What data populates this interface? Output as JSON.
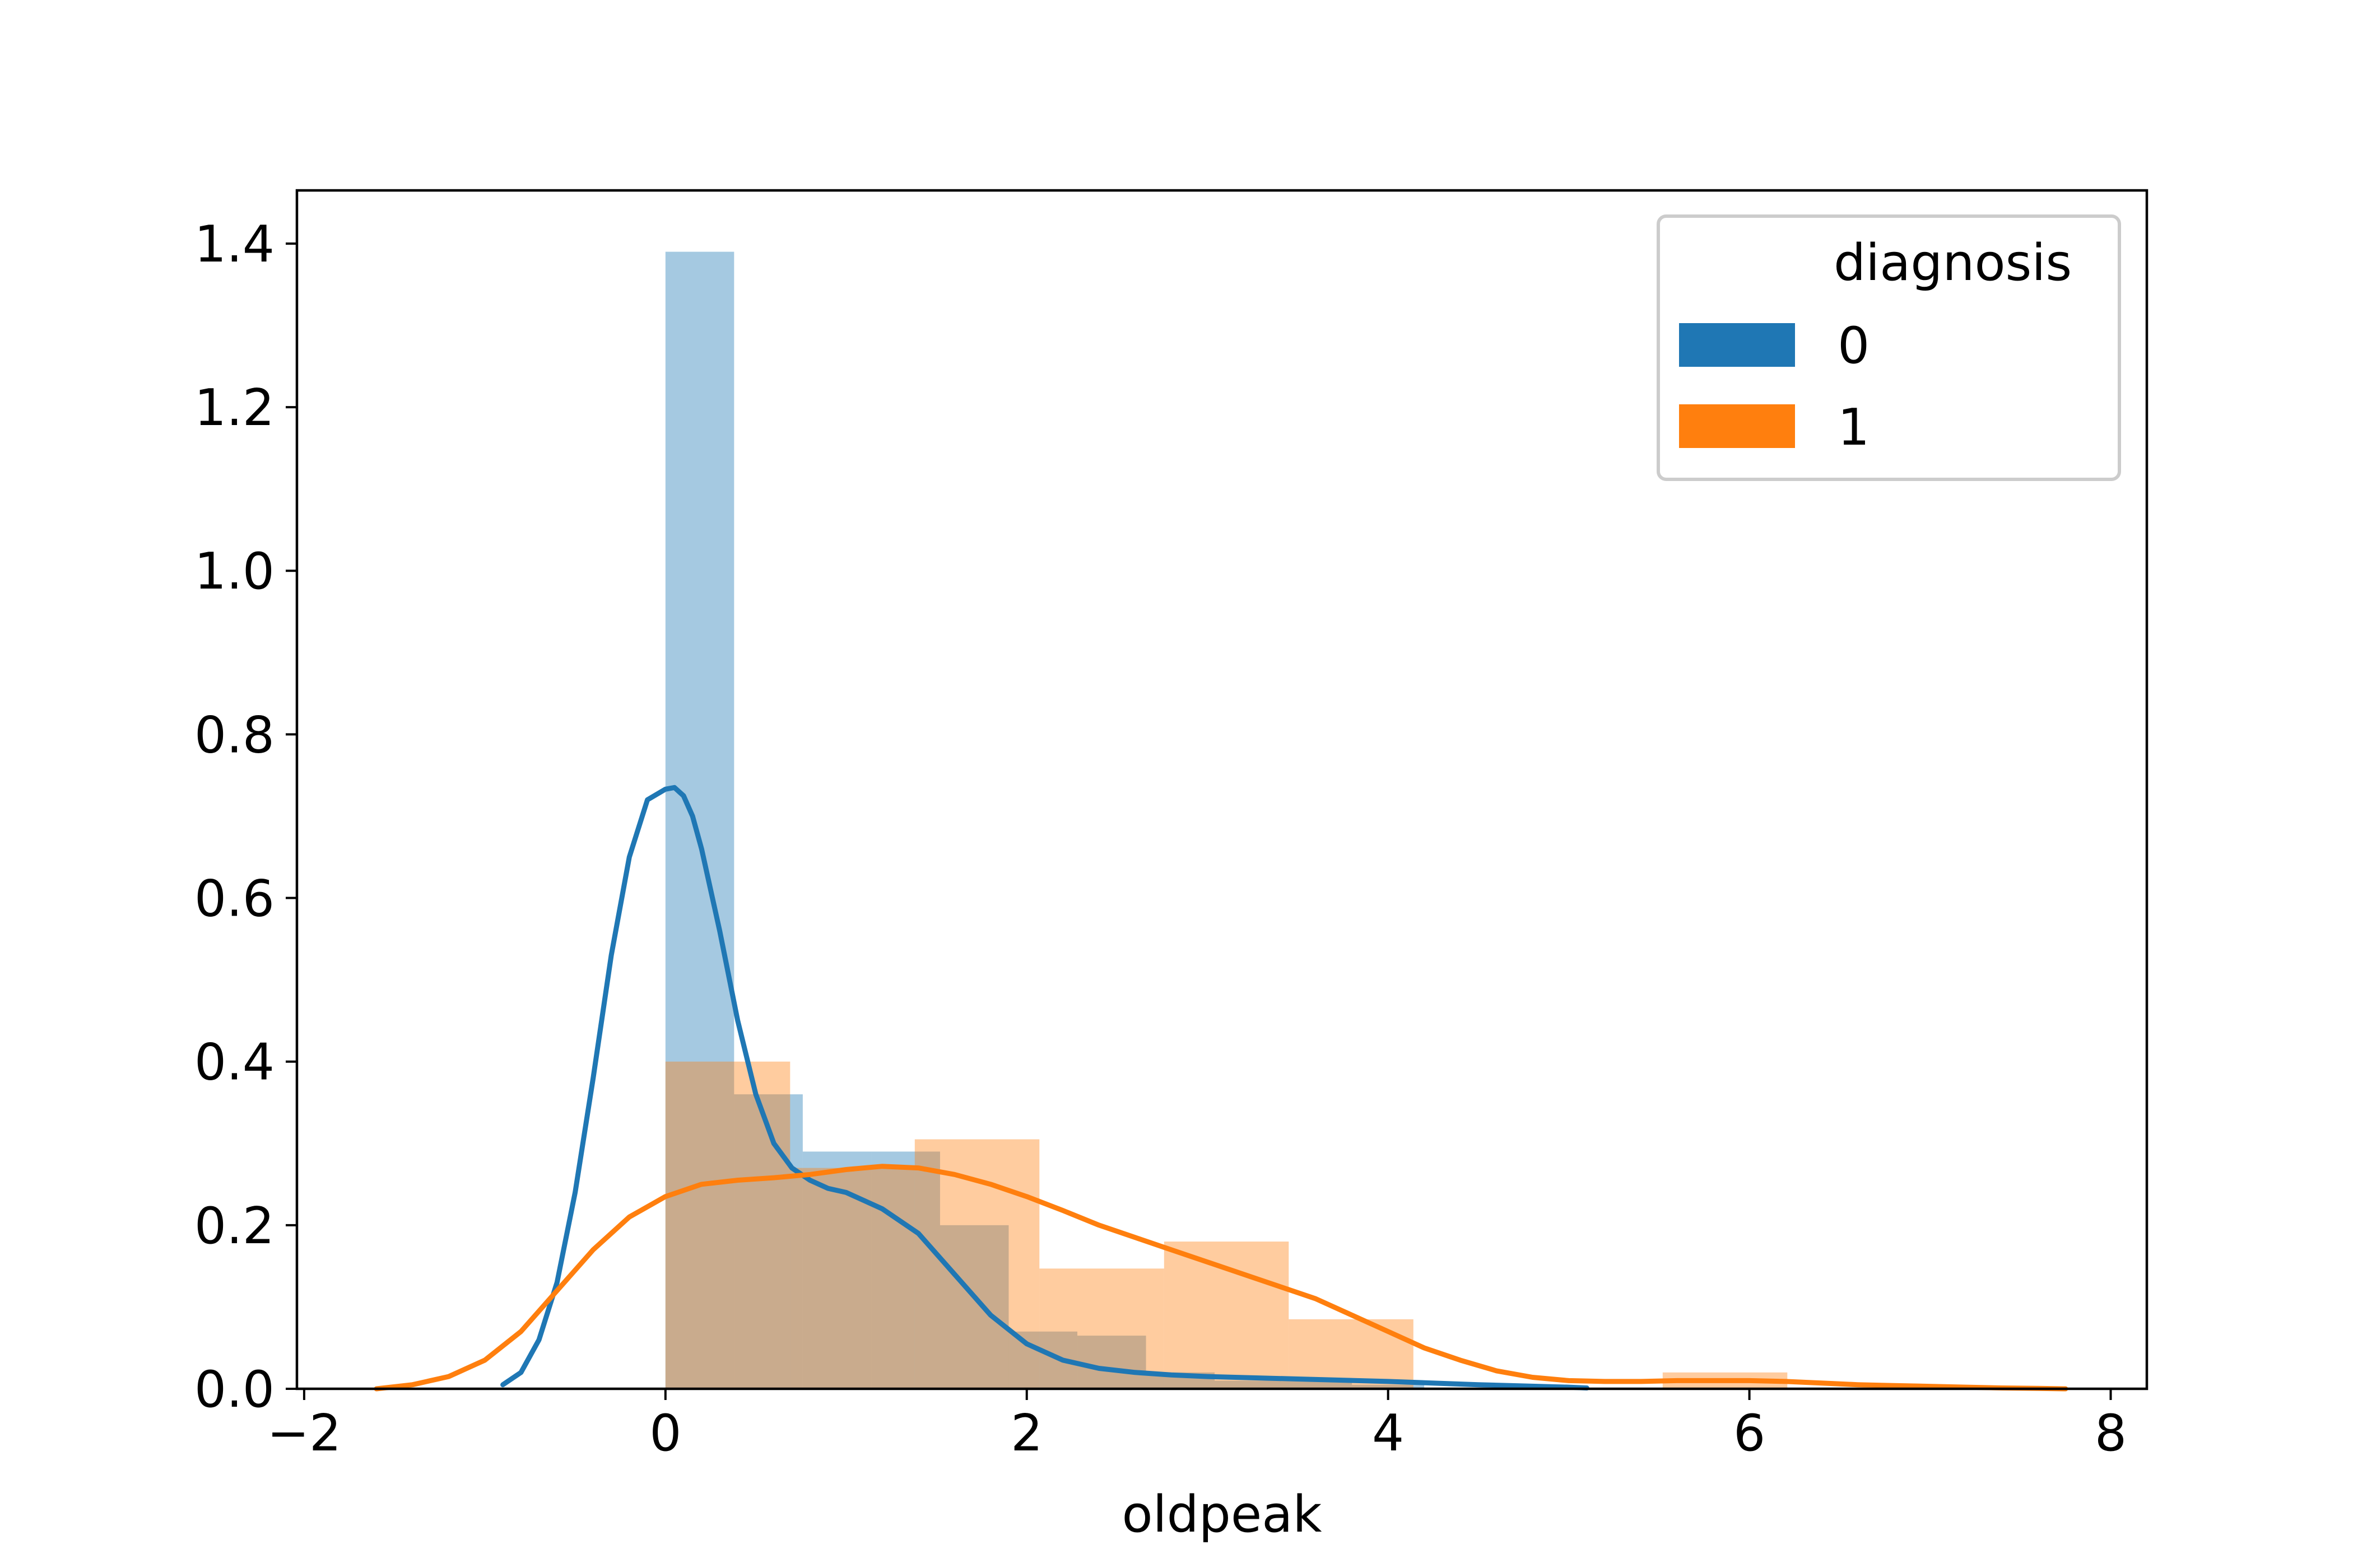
{
  "chart_data": {
    "type": "histogram-kde",
    "xlabel": "oldpeak",
    "ylabel": "",
    "xlim": [
      -2.04,
      8.2
    ],
    "ylim": [
      0,
      1.465
    ],
    "xticks": [
      -2,
      0,
      2,
      4,
      6,
      8
    ],
    "xtick_labels": [
      "−2",
      "0",
      "2",
      "4",
      "6",
      "8"
    ],
    "yticks": [
      0.0,
      0.2,
      0.4,
      0.6,
      0.8,
      1.0,
      1.2,
      1.4
    ],
    "ytick_labels": [
      "0.0",
      "0.2",
      "0.4",
      "0.6",
      "0.8",
      "1.0",
      "1.2",
      "1.4"
    ],
    "grid": false,
    "legend": {
      "title": "diagnosis",
      "placement": "top-right",
      "entries": [
        {
          "label": "0",
          "color": "#1f77b4"
        },
        {
          "label": "1",
          "color": "#ff7f0e"
        }
      ]
    },
    "series": [
      {
        "name": "0",
        "color": "#1f77b4",
        "bar_opacity": 0.4,
        "histogram": {
          "bins": [
            [
              0.0,
              0.38,
              1.39
            ],
            [
              0.38,
              0.76,
              0.36
            ],
            [
              0.76,
              1.14,
              0.29
            ],
            [
              1.14,
              1.52,
              0.29
            ],
            [
              1.52,
              1.9,
              0.2
            ],
            [
              1.9,
              2.28,
              0.07
            ],
            [
              2.28,
              2.66,
              0.065
            ],
            [
              2.66,
              3.04,
              0.02
            ],
            [
              3.04,
              3.42,
              0.01
            ],
            [
              3.42,
              3.8,
              0.01
            ],
            [
              3.8,
              4.2,
              0.005
            ]
          ]
        },
        "kde": {
          "x": [
            -0.9,
            -0.8,
            -0.7,
            -0.6,
            -0.5,
            -0.4,
            -0.3,
            -0.2,
            -0.1,
            0.0,
            0.05,
            0.1,
            0.15,
            0.2,
            0.3,
            0.4,
            0.5,
            0.6,
            0.7,
            0.8,
            0.9,
            1.0,
            1.2,
            1.4,
            1.6,
            1.8,
            2.0,
            2.2,
            2.4,
            2.6,
            2.8,
            3.0,
            3.5,
            4.0,
            4.5,
            5.0,
            5.1
          ],
          "y": [
            0.005,
            0.02,
            0.06,
            0.13,
            0.24,
            0.38,
            0.53,
            0.65,
            0.72,
            0.733,
            0.735,
            0.725,
            0.7,
            0.66,
            0.56,
            0.45,
            0.36,
            0.3,
            0.27,
            0.255,
            0.245,
            0.24,
            0.22,
            0.19,
            0.14,
            0.09,
            0.055,
            0.035,
            0.025,
            0.02,
            0.017,
            0.015,
            0.012,
            0.009,
            0.005,
            0.002,
            0.001
          ]
        }
      },
      {
        "name": "1",
        "color": "#ff7f0e",
        "bar_opacity": 0.4,
        "histogram": {
          "bins": [
            [
              0.0,
              0.69,
              0.4
            ],
            [
              0.69,
              1.38,
              0.27
            ],
            [
              1.38,
              2.07,
              0.305
            ],
            [
              2.07,
              2.76,
              0.147
            ],
            [
              2.76,
              3.45,
              0.18
            ],
            [
              3.45,
              4.14,
              0.085
            ],
            [
              4.14,
              4.83,
              0.0
            ],
            [
              4.83,
              5.52,
              0.0
            ],
            [
              5.52,
              6.21,
              0.02
            ]
          ]
        },
        "kde": {
          "x": [
            -1.6,
            -1.4,
            -1.2,
            -1.0,
            -0.8,
            -0.6,
            -0.4,
            -0.2,
            0.0,
            0.2,
            0.4,
            0.6,
            0.8,
            1.0,
            1.2,
            1.4,
            1.6,
            1.8,
            2.0,
            2.2,
            2.4,
            2.6,
            2.8,
            3.0,
            3.2,
            3.4,
            3.6,
            3.8,
            4.0,
            4.2,
            4.4,
            4.6,
            4.8,
            5.0,
            5.2,
            5.4,
            5.6,
            5.8,
            6.0,
            6.2,
            6.4,
            6.6,
            6.8,
            7.0,
            7.2,
            7.4,
            7.6,
            7.75
          ],
          "y": [
            0.0,
            0.005,
            0.015,
            0.035,
            0.07,
            0.12,
            0.17,
            0.21,
            0.235,
            0.25,
            0.255,
            0.258,
            0.262,
            0.268,
            0.272,
            0.27,
            0.262,
            0.25,
            0.235,
            0.218,
            0.2,
            0.185,
            0.17,
            0.155,
            0.14,
            0.125,
            0.11,
            0.09,
            0.07,
            0.05,
            0.035,
            0.022,
            0.014,
            0.01,
            0.009,
            0.009,
            0.01,
            0.01,
            0.01,
            0.009,
            0.007,
            0.005,
            0.004,
            0.003,
            0.002,
            0.001,
            0.0005,
            0.0
          ]
        }
      }
    ]
  }
}
